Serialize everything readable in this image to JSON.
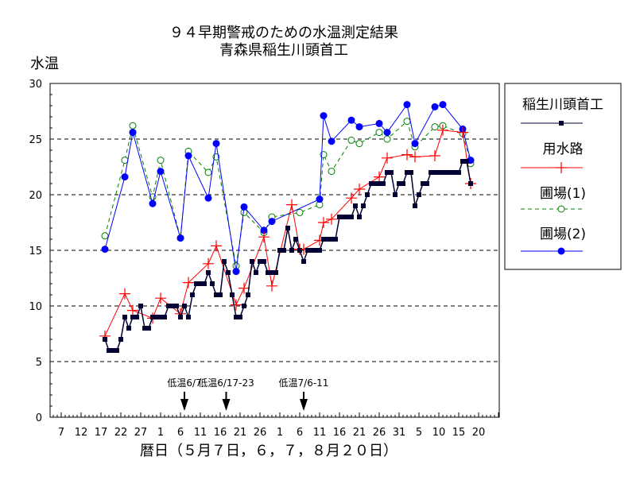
{
  "chart_data": {
    "type": "line",
    "title": "９４早期警戒のための水温測定結果",
    "subtitle": "青森県稲生川頭首工",
    "ylabel": "水温",
    "xlabel": "暦日（５月７日，６，７，８月２０日）",
    "x_unit": "days since May 7",
    "ylim": [
      0,
      30
    ],
    "yticks": [
      0,
      5,
      10,
      15,
      20,
      25,
      30
    ],
    "xlim": [
      -3,
      110
    ],
    "xtick_labels": [
      {
        "day": 0,
        "label": "7"
      },
      {
        "day": 5,
        "label": "12"
      },
      {
        "day": 10,
        "label": "17"
      },
      {
        "day": 15,
        "label": "22"
      },
      {
        "day": 20,
        "label": "27"
      },
      {
        "day": 25,
        "label": "1"
      },
      {
        "day": 30,
        "label": "6"
      },
      {
        "day": 35,
        "label": "11"
      },
      {
        "day": 40,
        "label": "16"
      },
      {
        "day": 45,
        "label": "21"
      },
      {
        "day": 50,
        "label": "26"
      },
      {
        "day": 55,
        "label": "1"
      },
      {
        "day": 60,
        "label": "6"
      },
      {
        "day": 65,
        "label": "11"
      },
      {
        "day": 70,
        "label": "16"
      },
      {
        "day": 75,
        "label": "21"
      },
      {
        "day": 80,
        "label": "26"
      },
      {
        "day": 85,
        "label": "31"
      },
      {
        "day": 90,
        "label": "5"
      },
      {
        "day": 95,
        "label": "10"
      },
      {
        "day": 100,
        "label": "15"
      },
      {
        "day": 105,
        "label": "20"
      }
    ],
    "grid": "horizontal dashed at 5,10,15,20,25",
    "legend_position": "right",
    "annotations": [
      {
        "day": 31,
        "label": "低温6/7"
      },
      {
        "day": 41.5,
        "label": "低温6/17-23"
      },
      {
        "day": 61,
        "label": "低温7/6-11"
      }
    ],
    "series": [
      {
        "name": "稲生川頭首工",
        "color": "#000033",
        "marker": "square",
        "dash": false,
        "x": [
          11,
          12,
          13,
          14,
          15,
          16,
          17,
          18,
          19,
          20,
          21,
          22,
          23,
          24,
          25,
          26,
          27,
          28,
          29,
          30,
          31,
          32,
          33,
          34,
          35,
          36,
          37,
          38,
          39,
          40,
          41,
          42,
          43,
          44,
          45,
          46,
          47,
          48,
          49,
          50,
          51,
          52,
          53,
          54,
          55,
          56,
          57,
          58,
          59,
          60,
          61,
          62,
          63,
          64,
          65,
          66,
          67,
          68,
          69,
          70,
          71,
          72,
          73,
          74,
          75,
          76,
          77,
          78,
          79,
          80,
          81,
          82,
          83,
          84,
          85,
          86,
          87,
          88,
          89,
          90,
          91,
          92,
          93,
          94,
          95,
          96,
          97,
          98,
          99,
          100,
          101,
          102,
          103
        ],
        "y": [
          7,
          6,
          6,
          6,
          7,
          9,
          8,
          9,
          9,
          10,
          8,
          8,
          9,
          9,
          9,
          9,
          10,
          10,
          10,
          9,
          10,
          9,
          11,
          12,
          12,
          12,
          13,
          12,
          11,
          11,
          14,
          13,
          11,
          9,
          9,
          10,
          11,
          14,
          13,
          14,
          14,
          13,
          13,
          13,
          15,
          15,
          17,
          15,
          16,
          15,
          14,
          15,
          15,
          15,
          15,
          16,
          16,
          16,
          16,
          18,
          18,
          18,
          18,
          19,
          18,
          19,
          20,
          21,
          21,
          21,
          21,
          22,
          22,
          20,
          21,
          21,
          22,
          22,
          19,
          20,
          21,
          21,
          22,
          22,
          22,
          22,
          22,
          22,
          22,
          22,
          23,
          23,
          21
        ]
      },
      {
        "name": "用水路",
        "color": "#ff0000",
        "marker": "plus",
        "dash": false,
        "x": [
          11,
          16,
          18,
          23,
          25,
          30,
          32,
          37,
          39,
          44,
          46,
          51,
          53,
          58,
          60,
          61,
          65,
          66,
          68,
          73,
          75,
          80,
          82,
          87,
          89,
          94,
          96,
          101,
          103
        ],
        "y": [
          7.3,
          11.1,
          9.6,
          8.9,
          10.7,
          9.3,
          12.1,
          13.8,
          15.4,
          10.1,
          11.6,
          16.2,
          11.8,
          19.1,
          15.1,
          15.1,
          15.9,
          17.5,
          17.8,
          19.7,
          20.5,
          21.6,
          23.3,
          23.6,
          23.4,
          23.5,
          25.8,
          25.6,
          21.0
        ]
      },
      {
        "name": "圃場(1)",
        "color": "#008000",
        "marker": "open-circle",
        "dash": true,
        "x": [
          11,
          16,
          18,
          23,
          25,
          30,
          32,
          37,
          39,
          44,
          46,
          51,
          53,
          60,
          65,
          66,
          68,
          73,
          75,
          80,
          82,
          87,
          89,
          94,
          96,
          101,
          103
        ],
        "y": [
          16.3,
          23.1,
          26.2,
          19.8,
          23.1,
          16.1,
          23.9,
          22.0,
          23.4,
          13.6,
          18.4,
          16.6,
          18.0,
          18.4,
          19.1,
          23.6,
          22.1,
          24.9,
          24.6,
          25.6,
          25.0,
          26.6,
          24.3,
          26.1,
          26.2,
          25.5,
          22.8
        ]
      },
      {
        "name": "圃場(2)",
        "color": "#0000ff",
        "marker": "filled-circle",
        "dash": false,
        "x": [
          11,
          16,
          18,
          23,
          25,
          30,
          32,
          37,
          39,
          44,
          46,
          51,
          53,
          65,
          66,
          68,
          73,
          75,
          80,
          82,
          87,
          89,
          94,
          96,
          101,
          103
        ],
        "y": [
          15.1,
          21.6,
          25.6,
          19.2,
          22.1,
          16.1,
          23.5,
          19.7,
          24.6,
          13.1,
          18.9,
          16.8,
          17.6,
          19.6,
          27.1,
          24.8,
          26.7,
          26.1,
          26.4,
          25.6,
          28.1,
          24.6,
          27.9,
          28.1,
          25.9,
          23.1
        ]
      }
    ]
  },
  "legend": {
    "labels": [
      "稲生川頭首工",
      "用水路",
      "圃場(1)",
      "圃場(2)"
    ]
  }
}
